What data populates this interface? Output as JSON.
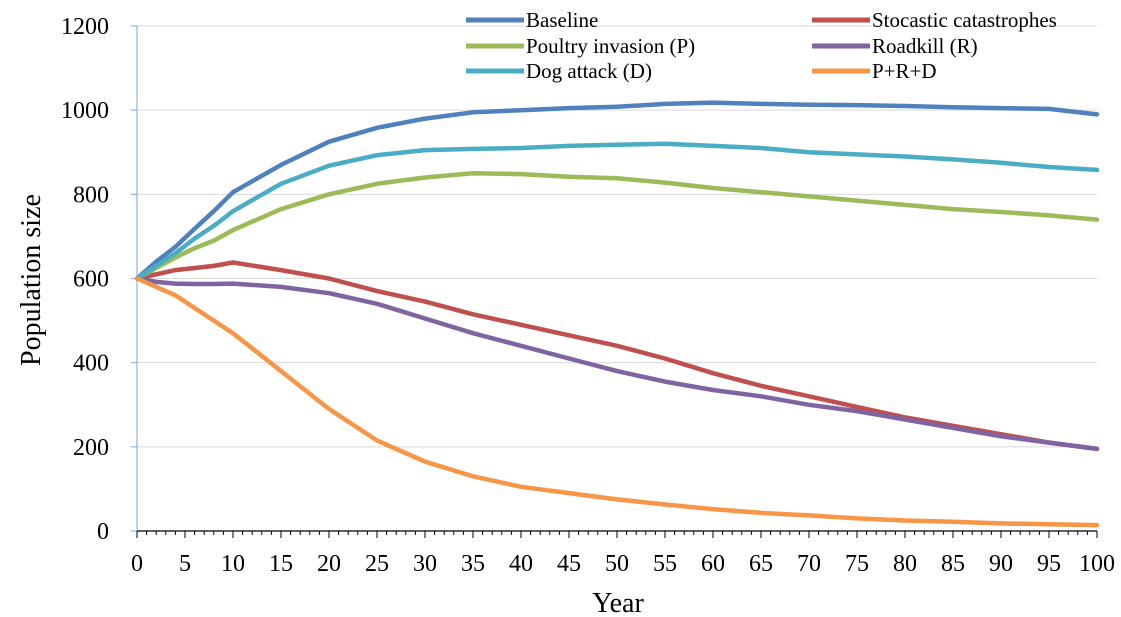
{
  "chart_data": {
    "type": "line",
    "title": "",
    "xlabel": "Year",
    "ylabel": "Population size",
    "xlim": [
      0,
      100
    ],
    "ylim": [
      0,
      1200
    ],
    "x_ticks": [
      0,
      5,
      10,
      15,
      20,
      25,
      30,
      35,
      40,
      45,
      50,
      55,
      60,
      65,
      70,
      75,
      80,
      85,
      90,
      95,
      100
    ],
    "x_tick_labels": [
      "0",
      "5",
      "10",
      "15",
      "20",
      "25",
      "30",
      "35",
      "40",
      "45",
      "50",
      "55",
      "60",
      "65",
      "70",
      "75",
      "80",
      "85",
      "90",
      "95",
      "100"
    ],
    "y_ticks": [
      0,
      200,
      400,
      600,
      800,
      1000,
      1200
    ],
    "y_tick_labels": [
      "0",
      "200",
      "400",
      "600",
      "800",
      "1000",
      "1200"
    ],
    "grid": "horizontal",
    "legend_position": "top-right",
    "x": [
      0,
      2,
      4,
      6,
      8,
      10,
      15,
      20,
      25,
      30,
      35,
      40,
      45,
      50,
      55,
      60,
      65,
      70,
      75,
      80,
      85,
      90,
      95,
      100
    ],
    "series": [
      {
        "name": "Baseline",
        "color": "#4F81BD",
        "values": [
          600,
          640,
          675,
          718,
          760,
          805,
          870,
          925,
          958,
          980,
          995,
          1000,
          1005,
          1008,
          1015,
          1018,
          1015,
          1013,
          1012,
          1010,
          1007,
          1005,
          1003,
          990
        ]
      },
      {
        "name": "Stocastic catastrophes",
        "color": "#C0504D",
        "values": [
          600,
          610,
          620,
          625,
          630,
          638,
          620,
          600,
          570,
          545,
          515,
          490,
          465,
          440,
          410,
          375,
          345,
          320,
          295,
          270,
          250,
          230,
          210,
          195
        ]
      },
      {
        "name": "Poultry invasion (P)",
        "color": "#9BBB59",
        "values": [
          600,
          625,
          650,
          672,
          690,
          715,
          765,
          800,
          825,
          840,
          850,
          848,
          842,
          838,
          828,
          815,
          805,
          795,
          785,
          775,
          765,
          758,
          750,
          740
        ]
      },
      {
        "name": "Roadkill (R)",
        "color": "#8064A2",
        "values": [
          600,
          592,
          588,
          587,
          587,
          588,
          580,
          565,
          540,
          505,
          470,
          440,
          410,
          380,
          355,
          335,
          320,
          300,
          285,
          265,
          245,
          225,
          210,
          195
        ]
      },
      {
        "name": "Dog attack (D)",
        "color": "#4BACC6",
        "values": [
          600,
          630,
          660,
          695,
          725,
          760,
          825,
          868,
          893,
          905,
          908,
          910,
          915,
          918,
          920,
          915,
          910,
          900,
          895,
          890,
          883,
          875,
          865,
          858
        ]
      },
      {
        "name": "P+R+D",
        "color": "#F79646",
        "values": [
          600,
          580,
          560,
          530,
          500,
          470,
          380,
          290,
          215,
          165,
          130,
          105,
          90,
          75,
          63,
          52,
          43,
          37,
          30,
          25,
          22,
          18,
          16,
          14
        ]
      }
    ]
  }
}
